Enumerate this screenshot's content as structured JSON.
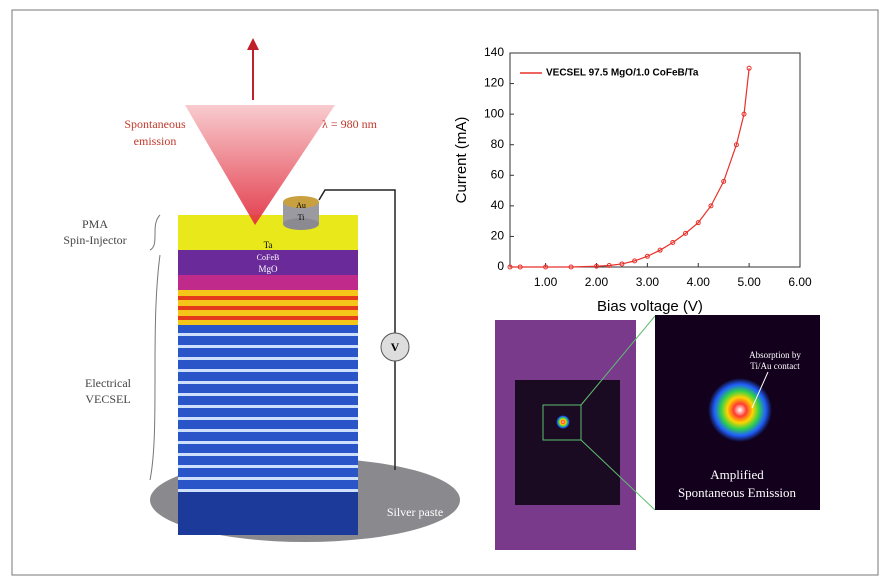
{
  "chart_data": {
    "type": "line",
    "x_label": "Bias voltage (V)",
    "y_label": "Current (mA)",
    "x": [
      0.3,
      0.5,
      1.0,
      1.5,
      2.0,
      2.25,
      2.5,
      2.75,
      3.0,
      3.25,
      3.5,
      3.75,
      4.0,
      4.25,
      4.5,
      4.75,
      4.9,
      5.0
    ],
    "series": [
      {
        "name": "VECSEL 97.5 MgO/1.0 CoFeB/Ta",
        "color": "#e8302a",
        "values": [
          0,
          0,
          0,
          0,
          0.5,
          1,
          2,
          4,
          7,
          11,
          16,
          22,
          29,
          40,
          56,
          80,
          100,
          130
        ]
      }
    ],
    "xlim": [
      0.3,
      6.0
    ],
    "xticks": [
      {
        "value": 1,
        "label": "1.00"
      },
      {
        "value": 2,
        "label": "2.00"
      },
      {
        "value": 3,
        "label": "3.00"
      },
      {
        "value": 4,
        "label": "4.00"
      },
      {
        "value": 5,
        "label": "5.00"
      },
      {
        "value": 6,
        "label": "6.00"
      }
    ],
    "ylim": [
      0,
      140
    ],
    "yticks": [
      0,
      20,
      40,
      60,
      80,
      100,
      120,
      140
    ]
  },
  "diagram": {
    "emission_label": [
      "Spontaneous",
      "emission"
    ],
    "wavelength": "λ = 980 nm",
    "spin_injector": [
      "PMA",
      "Spin-Injector"
    ],
    "vecsel": [
      "Electrical",
      "VECSEL"
    ],
    "layers": {
      "au": "Au",
      "ti": "Ti",
      "ta": "Ta",
      "cofeb": "CoFeB",
      "mgo": "MgO"
    },
    "voltmeter": "V",
    "silver_paste": "Silver paste",
    "absorption": [
      "Absorption by",
      "Ti/Au contact"
    ],
    "ase": [
      "Amplified",
      "Spontaneous Emission"
    ]
  }
}
